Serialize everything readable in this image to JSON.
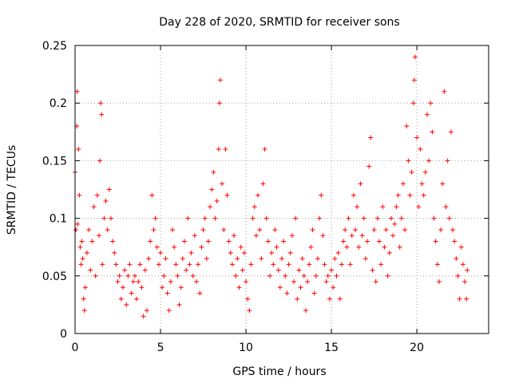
{
  "chart_data": {
    "type": "scatter",
    "title": "Day 228 of 2020, SRMTID for receiver sons",
    "xlabel": "GPS time / hours",
    "ylabel": "SRMTID / TECUs",
    "xlim": [
      0,
      24.2
    ],
    "ylim": [
      0,
      0.25
    ],
    "xticks": [
      0,
      5,
      10,
      15,
      20
    ],
    "xtick_labels": [
      "0",
      "5",
      "10",
      "15",
      "20"
    ],
    "yticks": [
      0,
      0.05,
      0.1,
      0.15,
      0.2,
      0.25
    ],
    "ytick_labels": [
      "0",
      "0.05",
      "0.1",
      "0.15",
      "0.2",
      "0.25"
    ],
    "grid": true,
    "marker": "+",
    "color": "#ff0000",
    "series": [
      {
        "name": "SRMTID",
        "points": [
          [
            0.0,
            0.14
          ],
          [
            0.05,
            0.09
          ],
          [
            0.1,
            0.18
          ],
          [
            0.12,
            0.21
          ],
          [
            0.15,
            0.095
          ],
          [
            0.2,
            0.16
          ],
          [
            0.25,
            0.12
          ],
          [
            0.3,
            0.075
          ],
          [
            0.35,
            0.06
          ],
          [
            0.4,
            0.08
          ],
          [
            0.45,
            0.065
          ],
          [
            0.5,
            0.03
          ],
          [
            0.55,
            0.02
          ],
          [
            0.6,
            0.04
          ],
          [
            0.7,
            0.07
          ],
          [
            0.8,
            0.09
          ],
          [
            0.9,
            0.055
          ],
          [
            1.0,
            0.08
          ],
          [
            1.1,
            0.11
          ],
          [
            1.2,
            0.05
          ],
          [
            1.3,
            0.12
          ],
          [
            1.4,
            0.085
          ],
          [
            1.45,
            0.15
          ],
          [
            1.5,
            0.2
          ],
          [
            1.55,
            0.19
          ],
          [
            1.6,
            0.06
          ],
          [
            1.7,
            0.1
          ],
          [
            1.8,
            0.115
          ],
          [
            1.9,
            0.09
          ],
          [
            2.0,
            0.125
          ],
          [
            2.1,
            0.1
          ],
          [
            2.2,
            0.08
          ],
          [
            2.3,
            0.07
          ],
          [
            2.4,
            0.06
          ],
          [
            2.5,
            0.045
          ],
          [
            2.6,
            0.05
          ],
          [
            2.7,
            0.03
          ],
          [
            2.8,
            0.04
          ],
          [
            2.9,
            0.055
          ],
          [
            3.0,
            0.025
          ],
          [
            3.1,
            0.05
          ],
          [
            3.2,
            0.06
          ],
          [
            3.3,
            0.035
          ],
          [
            3.4,
            0.045
          ],
          [
            3.5,
            0.05
          ],
          [
            3.6,
            0.03
          ],
          [
            3.7,
            0.045
          ],
          [
            3.8,
            0.06
          ],
          [
            3.9,
            0.04
          ],
          [
            4.0,
            0.015
          ],
          [
            4.1,
            0.055
          ],
          [
            4.2,
            0.02
          ],
          [
            4.3,
            0.065
          ],
          [
            4.4,
            0.08
          ],
          [
            4.5,
            0.12
          ],
          [
            4.6,
            0.09
          ],
          [
            4.7,
            0.1
          ],
          [
            4.8,
            0.075
          ],
          [
            4.9,
            0.06
          ],
          [
            5.0,
            0.07
          ],
          [
            5.1,
            0.04
          ],
          [
            5.2,
            0.05
          ],
          [
            5.3,
            0.065
          ],
          [
            5.4,
            0.035
          ],
          [
            5.5,
            0.02
          ],
          [
            5.6,
            0.045
          ],
          [
            5.7,
            0.09
          ],
          [
            5.8,
            0.075
          ],
          [
            5.9,
            0.06
          ],
          [
            6.0,
            0.05
          ],
          [
            6.1,
            0.025
          ],
          [
            6.2,
            0.04
          ],
          [
            6.3,
            0.065
          ],
          [
            6.4,
            0.08
          ],
          [
            6.5,
            0.055
          ],
          [
            6.6,
            0.1
          ],
          [
            6.7,
            0.06
          ],
          [
            6.8,
            0.07
          ],
          [
            6.9,
            0.05
          ],
          [
            7.0,
            0.085
          ],
          [
            7.1,
            0.045
          ],
          [
            7.2,
            0.06
          ],
          [
            7.3,
            0.035
          ],
          [
            7.4,
            0.075
          ],
          [
            7.5,
            0.09
          ],
          [
            7.6,
            0.1
          ],
          [
            7.7,
            0.065
          ],
          [
            7.8,
            0.08
          ],
          [
            7.9,
            0.11
          ],
          [
            8.0,
            0.125
          ],
          [
            8.1,
            0.14
          ],
          [
            8.2,
            0.1
          ],
          [
            8.3,
            0.115
          ],
          [
            8.4,
            0.16
          ],
          [
            8.45,
            0.2
          ],
          [
            8.5,
            0.22
          ],
          [
            8.6,
            0.13
          ],
          [
            8.7,
            0.09
          ],
          [
            8.8,
            0.16
          ],
          [
            8.9,
            0.12
          ],
          [
            9.0,
            0.08
          ],
          [
            9.1,
            0.07
          ],
          [
            9.2,
            0.06
          ],
          [
            9.3,
            0.085
          ],
          [
            9.4,
            0.05
          ],
          [
            9.5,
            0.065
          ],
          [
            9.6,
            0.04
          ],
          [
            9.7,
            0.075
          ],
          [
            9.8,
            0.055
          ],
          [
            9.9,
            0.07
          ],
          [
            10.0,
            0.045
          ],
          [
            10.1,
            0.03
          ],
          [
            10.2,
            0.02
          ],
          [
            10.3,
            0.06
          ],
          [
            10.4,
            0.1
          ],
          [
            10.5,
            0.11
          ],
          [
            10.6,
            0.085
          ],
          [
            10.7,
            0.12
          ],
          [
            10.8,
            0.09
          ],
          [
            10.9,
            0.065
          ],
          [
            11.0,
            0.13
          ],
          [
            11.1,
            0.16
          ],
          [
            11.2,
            0.1
          ],
          [
            11.3,
            0.08
          ],
          [
            11.4,
            0.05
          ],
          [
            11.5,
            0.07
          ],
          [
            11.6,
            0.06
          ],
          [
            11.7,
            0.09
          ],
          [
            11.8,
            0.075
          ],
          [
            11.9,
            0.055
          ],
          [
            12.0,
            0.04
          ],
          [
            12.1,
            0.065
          ],
          [
            12.2,
            0.08
          ],
          [
            12.3,
            0.05
          ],
          [
            12.4,
            0.035
          ],
          [
            12.5,
            0.06
          ],
          [
            12.6,
            0.07
          ],
          [
            12.7,
            0.085
          ],
          [
            12.8,
            0.045
          ],
          [
            12.9,
            0.1
          ],
          [
            13.0,
            0.03
          ],
          [
            13.1,
            0.055
          ],
          [
            13.2,
            0.04
          ],
          [
            13.3,
            0.065
          ],
          [
            13.4,
            0.05
          ],
          [
            13.5,
            0.02
          ],
          [
            13.6,
            0.045
          ],
          [
            13.7,
            0.06
          ],
          [
            13.8,
            0.075
          ],
          [
            13.9,
            0.09
          ],
          [
            14.0,
            0.035
          ],
          [
            14.1,
            0.05
          ],
          [
            14.2,
            0.065
          ],
          [
            14.3,
            0.1
          ],
          [
            14.4,
            0.12
          ],
          [
            14.5,
            0.085
          ],
          [
            14.6,
            0.06
          ],
          [
            14.7,
            0.045
          ],
          [
            14.8,
            0.05
          ],
          [
            14.9,
            0.03
          ],
          [
            15.0,
            0.055
          ],
          [
            15.1,
            0.04
          ],
          [
            15.2,
            0.065
          ],
          [
            15.3,
            0.05
          ],
          [
            15.4,
            0.07
          ],
          [
            15.5,
            0.03
          ],
          [
            15.6,
            0.06
          ],
          [
            15.7,
            0.08
          ],
          [
            15.8,
            0.09
          ],
          [
            15.9,
            0.075
          ],
          [
            16.0,
            0.1
          ],
          [
            16.1,
            0.06
          ],
          [
            16.2,
            0.085
          ],
          [
            16.3,
            0.12
          ],
          [
            16.4,
            0.09
          ],
          [
            16.5,
            0.11
          ],
          [
            16.6,
            0.075
          ],
          [
            16.7,
            0.13
          ],
          [
            16.8,
            0.085
          ],
          [
            16.9,
            0.1
          ],
          [
            17.0,
            0.065
          ],
          [
            17.1,
            0.08
          ],
          [
            17.2,
            0.145
          ],
          [
            17.3,
            0.17
          ],
          [
            17.4,
            0.055
          ],
          [
            17.5,
            0.09
          ],
          [
            17.6,
            0.045
          ],
          [
            17.7,
            0.1
          ],
          [
            17.8,
            0.08
          ],
          [
            17.9,
            0.06
          ],
          [
            18.0,
            0.11
          ],
          [
            18.1,
            0.075
          ],
          [
            18.2,
            0.09
          ],
          [
            18.3,
            0.05
          ],
          [
            18.4,
            0.07
          ],
          [
            18.5,
            0.1
          ],
          [
            18.6,
            0.085
          ],
          [
            18.7,
            0.095
          ],
          [
            18.8,
            0.11
          ],
          [
            18.9,
            0.12
          ],
          [
            19.0,
            0.075
          ],
          [
            19.1,
            0.1
          ],
          [
            19.2,
            0.13
          ],
          [
            19.3,
            0.09
          ],
          [
            19.4,
            0.18
          ],
          [
            19.5,
            0.15
          ],
          [
            19.6,
            0.12
          ],
          [
            19.7,
            0.14
          ],
          [
            19.8,
            0.2
          ],
          [
            19.85,
            0.22
          ],
          [
            19.9,
            0.24
          ],
          [
            20.0,
            0.17
          ],
          [
            20.1,
            0.11
          ],
          [
            20.2,
            0.16
          ],
          [
            20.3,
            0.13
          ],
          [
            20.4,
            0.12
          ],
          [
            20.5,
            0.14
          ],
          [
            20.6,
            0.19
          ],
          [
            20.7,
            0.15
          ],
          [
            20.8,
            0.2
          ],
          [
            20.9,
            0.175
          ],
          [
            21.0,
            0.1
          ],
          [
            21.1,
            0.08
          ],
          [
            21.2,
            0.06
          ],
          [
            21.3,
            0.045
          ],
          [
            21.4,
            0.09
          ],
          [
            21.5,
            0.13
          ],
          [
            21.6,
            0.21
          ],
          [
            21.7,
            0.11
          ],
          [
            21.8,
            0.15
          ],
          [
            21.9,
            0.1
          ],
          [
            22.0,
            0.175
          ],
          [
            22.1,
            0.09
          ],
          [
            22.2,
            0.08
          ],
          [
            22.3,
            0.065
          ],
          [
            22.4,
            0.05
          ],
          [
            22.5,
            0.03
          ],
          [
            22.6,
            0.075
          ],
          [
            22.7,
            0.06
          ],
          [
            22.8,
            0.045
          ],
          [
            22.9,
            0.03
          ],
          [
            22.95,
            0.055
          ]
        ]
      }
    ]
  }
}
